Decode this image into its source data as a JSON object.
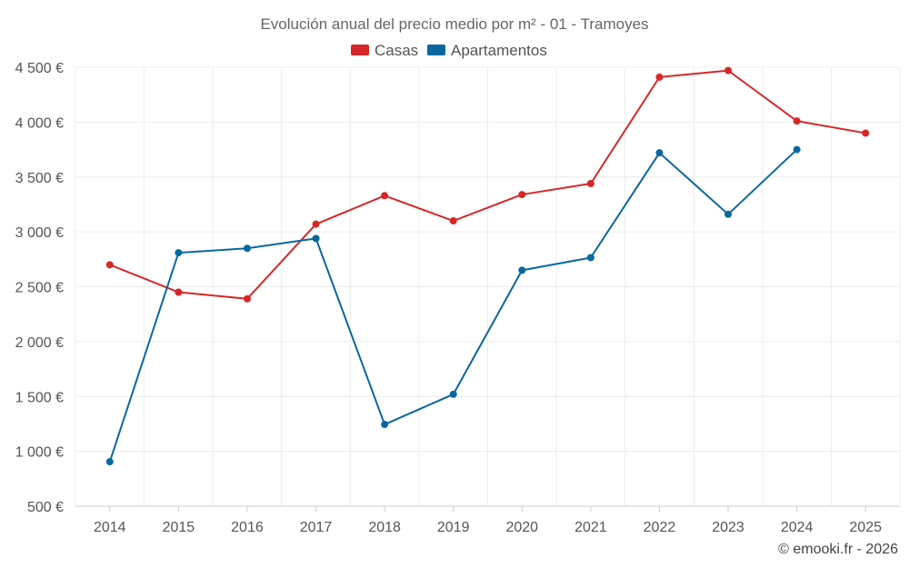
{
  "chart_data": {
    "type": "line",
    "title": "Evolución anual del precio medio por m² - 01 - Tramoyes",
    "categories": [
      "2014",
      "2015",
      "2016",
      "2017",
      "2018",
      "2019",
      "2020",
      "2021",
      "2022",
      "2023",
      "2024",
      "2025"
    ],
    "series": [
      {
        "name": "Casas",
        "color": "#d62728",
        "values": [
          2700,
          2450,
          2390,
          3070,
          3330,
          3100,
          3340,
          3440,
          4410,
          4470,
          4010,
          3900
        ]
      },
      {
        "name": "Apartamentos",
        "color": "#08689e",
        "values": [
          905,
          2810,
          2850,
          2940,
          1245,
          1520,
          2650,
          2765,
          3720,
          3160,
          3750,
          null
        ]
      }
    ],
    "ylim": [
      500,
      4500
    ],
    "yticks": [
      500,
      1000,
      1500,
      2000,
      2500,
      3000,
      3500,
      4000,
      4500
    ],
    "ytick_labels": [
      "500 €",
      "1 000 €",
      "1 500 €",
      "2 000 €",
      "2 500 €",
      "3 000 €",
      "3 500 €",
      "4 000 €",
      "4 500 €"
    ],
    "legend_position": "top-center",
    "grid": true
  },
  "credit": "© emooki.fr - 2026"
}
